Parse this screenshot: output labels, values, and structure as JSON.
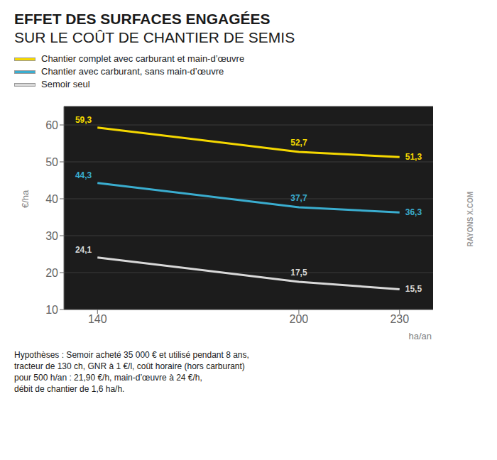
{
  "chart_data": {
    "type": "line",
    "title": "EFFET DES SURFACES ENGAGÉES",
    "subtitle": "SUR LE COÛT DE CHANTIER DE SEMIS",
    "x": [
      140,
      200,
      230
    ],
    "series": [
      {
        "name": "Chantier complet avec carburant et main-d’œuvre",
        "color": "#f5d800",
        "values": [
          59.3,
          52.7,
          51.3
        ],
        "value_labels": [
          "59,3",
          "52,7",
          "51,3"
        ]
      },
      {
        "name": "Chantier avec carburant, sans main-d’œuvre",
        "color": "#3aadcf",
        "values": [
          44.3,
          37.7,
          36.3
        ],
        "value_labels": [
          "44,3",
          "37,7",
          "36,3"
        ]
      },
      {
        "name": "Semoir seul",
        "color": "#d8d8d8",
        "values": [
          24.1,
          17.5,
          15.5
        ],
        "value_labels": [
          "24,1",
          "17,5",
          "15,5"
        ]
      }
    ],
    "y_label": "€/ha",
    "x_label": "ha/an",
    "xlim": [
      130,
      240
    ],
    "xticks": [
      140,
      200,
      230
    ],
    "ylim": [
      10,
      65
    ],
    "yticks": [
      10,
      20,
      30,
      40,
      50,
      60
    ],
    "grid": true,
    "legend": "top",
    "data_labels": true,
    "annotations": [
      "RAYONS X.COM",
      "Hypothèses : Semoir acheté 35 000 € et utilisé pendant 8 ans,\ntracteur de 130 ch, GNR à 1 €/l, coût horaire (hors carburant)\npour 500 h/an : 21,90 €/h, main-d’œuvre à 24 €/h,\ndébit de chantier de 1,6 ha/h."
    ]
  }
}
